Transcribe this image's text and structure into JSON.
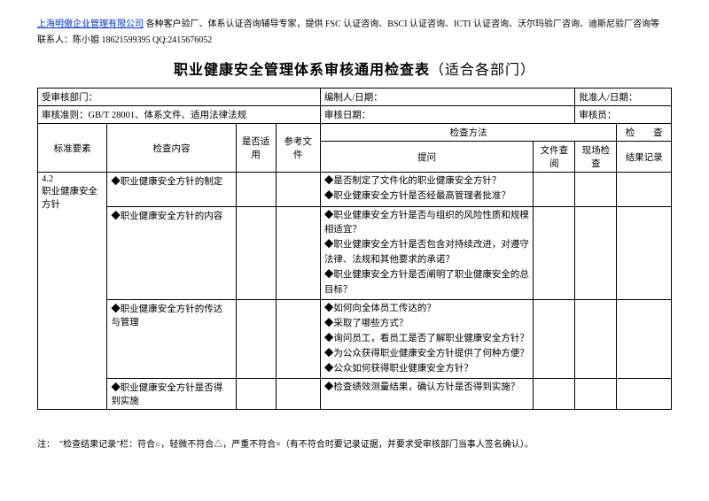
{
  "header": {
    "company_link": "上海明傲企业管理有限公司",
    "desc": " 各种客户验厂、体系认证咨询辅导专家，提供 FSC 认证咨询、BSCI 认证咨询、ICTI 认证咨询、沃尔玛验厂咨询、迪斯尼验厂咨询等",
    "contact": "联系人：陈小姐 18621599395 QQ:2415676052"
  },
  "title_main": "职业健康安全管理体系审核通用检查表",
  "title_sub": "（适合各部门）",
  "meta": {
    "dept_label": "受审核部门：",
    "compiler_label": "编制人/日期：",
    "approver_label": "批准人/日期：",
    "criteria_label": "审核准则：GB/T 28001、体系文件、适用法律法规",
    "date_label": "审核日期：",
    "auditor_label": "审核员："
  },
  "cols": {
    "std": "标准要素",
    "content": "检查内容",
    "apply": "是否适用",
    "ref": "参考文件",
    "method": "检查方法",
    "question": "提问",
    "doc": "文件查阅",
    "site": "现场检查",
    "result1": "检　　查",
    "result2": "结果记录"
  },
  "rows": {
    "std_cell": "4.2\n职业健康安全方针",
    "r1_content": "◆职业健康安全方针的制定",
    "r1_q1": "◆是否制定了文件化的职业健康安全方针？",
    "r1_q2": "◆职业健康安全方针是否经最高管理者批准？",
    "r2_content": "◆职业健康安全方针的内容",
    "r2_q1": "◆职业健康安全方针是否与组织的风险性质和规模相适宜？",
    "r2_q2": "◆职业健康安全方针是否包含对持续改进，对遵守法律、法规和其他要求的承诺？",
    "r2_q3": "◆职业健康安全方针是否阐明了职业健康安全的总目标？",
    "r3_content": "◆职业健康安全方针的传达与管理",
    "r3_q1": "◆如何向全体员工传达的？",
    "r3_q2": "◆采取了哪些方式？",
    "r3_q3": "◆询问员工，看员工是否了解职业健康安全方针？",
    "r3_q4": "◆为公众获得职业健康安全方针提供了何种方便？",
    "r3_q5": "◆公众如何获得职业健康安全方针？",
    "r4_content": "◆职业健康安全方针是否得到实施",
    "r4_q1": "◆检查绩效测量结果，确认方针是否得到实施？"
  },
  "footnote": "注：　\"检查结果记录\"栏：符合○，轻微不符合△，严重不符合×（有不符合时要记录证据，并要求受审核部门当事人签名确认）。"
}
